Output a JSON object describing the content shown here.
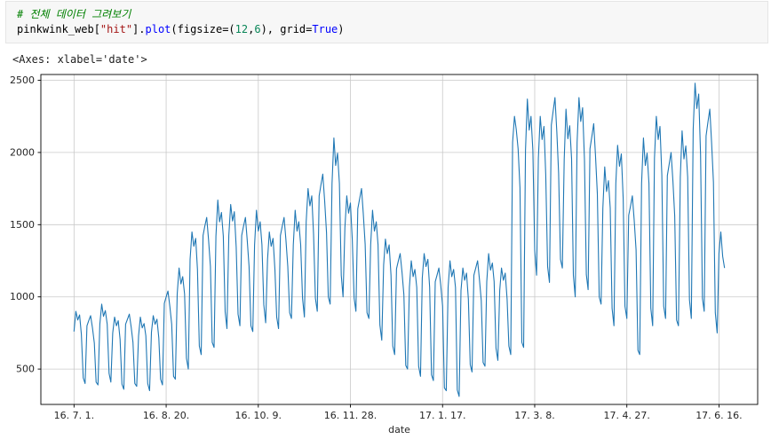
{
  "cell": {
    "code": {
      "line1": [
        {
          "text": "# 전체 데이터 그려보기",
          "type": "comment"
        }
      ],
      "line2": [
        {
          "text": "pinkwink_web[",
          "type": "plain"
        },
        {
          "text": "\"hit\"",
          "type": "string"
        },
        {
          "text": "].",
          "type": "plain"
        },
        {
          "text": "plot",
          "type": "func"
        },
        {
          "text": "(figsize=(",
          "type": "plain"
        },
        {
          "text": "12",
          "type": "num"
        },
        {
          "text": ",",
          "type": "plain"
        },
        {
          "text": "6",
          "type": "num"
        },
        {
          "text": "), grid=",
          "type": "plain"
        },
        {
          "text": "True",
          "type": "kw"
        },
        {
          "text": ")",
          "type": "plain"
        }
      ]
    },
    "output_text": "<Axes: xlabel='date'>"
  },
  "chart_data": {
    "type": "line",
    "title": "",
    "xlabel": "date",
    "ylabel": "",
    "grid": true,
    "legend_position": "none",
    "line_color": "#1f77b4",
    "grid_color": "#c9c9c9",
    "x_unit": "days since 2016-07-01 (daily web hits)",
    "xlim": [
      -18,
      371
    ],
    "ylim": [
      255,
      2540
    ],
    "x_tick_positions": [
      0,
      50,
      100,
      150,
      200,
      250,
      300,
      350
    ],
    "x_tick_labels": [
      "16. 7. 1.",
      "16. 8. 20.",
      "16. 10. 9.",
      "16. 11. 28.",
      "17. 1. 17.",
      "17. 3. 8.",
      "17. 4. 27.",
      "17. 6. 16."
    ],
    "y_ticks": [
      500,
      1000,
      1500,
      2000,
      2500
    ],
    "series": [
      {
        "name": "hit",
        "values": [
          760,
          900,
          840,
          875,
          740,
          440,
          400,
          800,
          835,
          870,
          785,
          680,
          410,
          390,
          810,
          950,
          865,
          905,
          810,
          470,
          410,
          750,
          860,
          800,
          835,
          705,
          395,
          360,
          810,
          845,
          880,
          790,
          685,
          400,
          380,
          730,
          860,
          785,
          815,
          730,
          400,
          350,
          755,
          870,
          810,
          845,
          715,
          430,
          390,
          955,
          1000,
          1040,
          935,
          810,
          450,
          430,
          1020,
          1200,
          1090,
          1140,
          1020,
          575,
          500,
          1260,
          1450,
          1350,
          1405,
          1190,
          660,
          600,
          1425,
          1490,
          1550,
          1395,
          1210,
          685,
          650,
          1420,
          1670,
          1520,
          1585,
          1420,
          895,
          780,
          1425,
          1640,
          1525,
          1590,
          1345,
          880,
          800,
          1425,
          1490,
          1550,
          1395,
          1210,
          800,
          760,
          1360,
          1600,
          1455,
          1520,
          1360,
          945,
          820,
          1260,
          1450,
          1350,
          1405,
          1190,
          860,
          780,
          1425,
          1490,
          1550,
          1395,
          1210,
          890,
          850,
          1360,
          1600,
          1455,
          1520,
          1360,
          990,
          860,
          1520,
          1750,
          1630,
          1700,
          1435,
          990,
          900,
          1700,
          1775,
          1850,
          1665,
          1445,
          1000,
          950,
          1785,
          2100,
          1910,
          1995,
          1785,
          1150,
          1000,
          1480,
          1700,
          1580,
          1650,
          1395,
          990,
          900,
          1610,
          1680,
          1750,
          1575,
          1365,
          890,
          850,
          1360,
          1600,
          1455,
          1520,
          1360,
          805,
          700,
          1220,
          1400,
          1300,
          1360,
          1150,
          660,
          600,
          1195,
          1250,
          1300,
          1170,
          1015,
          525,
          500,
          1065,
          1250,
          1140,
          1190,
          1065,
          520,
          450,
          1130,
          1300,
          1210,
          1260,
          1065,
          460,
          420,
          1105,
          1150,
          1200,
          1080,
          935,
          370,
          350,
          1065,
          1250,
          1140,
          1190,
          1065,
          355,
          310,
          1045,
          1200,
          1115,
          1165,
          985,
          530,
          480,
          1150,
          1200,
          1250,
          1125,
          975,
          545,
          520,
          1105,
          1300,
          1185,
          1235,
          1105,
          645,
          560,
          1045,
          1200,
          1115,
          1165,
          985,
          660,
          600,
          2070,
          2250,
          2160,
          2025,
          1755,
          685,
          650,
          2015,
          2370,
          2155,
          2250,
          2015,
          1320,
          1150,
          1960,
          2250,
          2090,
          2180,
          1845,
          1210,
          1100,
          2190,
          2285,
          2380,
          2140,
          1855,
          1260,
          1200,
          1955,
          2300,
          2095,
          2185,
          1955,
          1150,
          1000,
          2070,
          2380,
          2215,
          2310,
          1950,
          1155,
          1050,
          2025,
          2110,
          2200,
          1980,
          1715,
          1000,
          950,
          1615,
          1900,
          1730,
          1805,
          1615,
          920,
          800,
          1785,
          2050,
          1905,
          1990,
          1680,
          935,
          850,
          1565,
          1630,
          1700,
          1530,
          1325,
          630,
          600,
          1785,
          2100,
          1910,
          1995,
          1785,
          920,
          800,
          1960,
          2250,
          2090,
          2180,
          1845,
          935,
          850,
          1840,
          1920,
          2000,
          1800,
          1560,
          840,
          800,
          1830,
          2150,
          1955,
          2045,
          1830,
          980,
          850,
          2160,
          2480,
          2305,
          2405,
          1985,
          990,
          900,
          2115,
          2210,
          2300,
          2070,
          1795,
          890,
          750,
          1300,
          1450,
          1280,
          1200
        ]
      }
    ]
  }
}
